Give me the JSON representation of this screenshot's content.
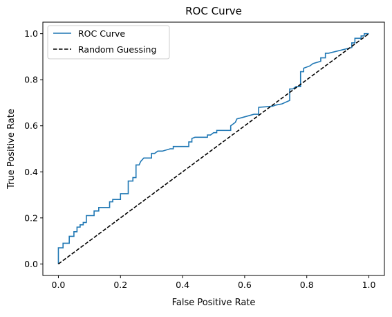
{
  "chart_data": {
    "type": "line",
    "title": "ROC Curve",
    "xlabel": "False Positive Rate",
    "ylabel": "True Positive Rate",
    "xlim": [
      -0.05,
      1.05
    ],
    "ylim": [
      -0.05,
      1.05
    ],
    "xticks": [
      0.0,
      0.2,
      0.4,
      0.6,
      0.8,
      1.0
    ],
    "yticks": [
      0.0,
      0.2,
      0.4,
      0.6,
      0.8,
      1.0
    ],
    "xtick_labels": [
      "0.0",
      "0.2",
      "0.4",
      "0.6",
      "0.8",
      "1.0"
    ],
    "ytick_labels": [
      "0.0",
      "0.2",
      "0.4",
      "0.6",
      "0.8",
      "1.0"
    ],
    "grid": false,
    "legend_position": "top-left",
    "series": [
      {
        "name": "ROC Curve",
        "color": "#1f77b4",
        "style": "solid",
        "points": [
          [
            0.0,
            0.0
          ],
          [
            0.0,
            0.07
          ],
          [
            0.015,
            0.07
          ],
          [
            0.015,
            0.09
          ],
          [
            0.035,
            0.09
          ],
          [
            0.035,
            0.12
          ],
          [
            0.05,
            0.12
          ],
          [
            0.05,
            0.14
          ],
          [
            0.06,
            0.14
          ],
          [
            0.06,
            0.16
          ],
          [
            0.07,
            0.16
          ],
          [
            0.07,
            0.17
          ],
          [
            0.08,
            0.17
          ],
          [
            0.08,
            0.18
          ],
          [
            0.09,
            0.18
          ],
          [
            0.09,
            0.21
          ],
          [
            0.115,
            0.21
          ],
          [
            0.115,
            0.23
          ],
          [
            0.13,
            0.23
          ],
          [
            0.13,
            0.245
          ],
          [
            0.165,
            0.245
          ],
          [
            0.165,
            0.27
          ],
          [
            0.175,
            0.27
          ],
          [
            0.175,
            0.28
          ],
          [
            0.2,
            0.28
          ],
          [
            0.2,
            0.305
          ],
          [
            0.225,
            0.305
          ],
          [
            0.225,
            0.36
          ],
          [
            0.24,
            0.36
          ],
          [
            0.24,
            0.375
          ],
          [
            0.25,
            0.375
          ],
          [
            0.25,
            0.43
          ],
          [
            0.26,
            0.43
          ],
          [
            0.265,
            0.445
          ],
          [
            0.275,
            0.46
          ],
          [
            0.3,
            0.46
          ],
          [
            0.3,
            0.48
          ],
          [
            0.31,
            0.48
          ],
          [
            0.32,
            0.49
          ],
          [
            0.335,
            0.49
          ],
          [
            0.36,
            0.5
          ],
          [
            0.37,
            0.5
          ],
          [
            0.37,
            0.51
          ],
          [
            0.42,
            0.51
          ],
          [
            0.42,
            0.53
          ],
          [
            0.43,
            0.53
          ],
          [
            0.43,
            0.545
          ],
          [
            0.44,
            0.55
          ],
          [
            0.48,
            0.55
          ],
          [
            0.48,
            0.56
          ],
          [
            0.49,
            0.56
          ],
          [
            0.5,
            0.57
          ],
          [
            0.51,
            0.57
          ],
          [
            0.51,
            0.58
          ],
          [
            0.555,
            0.58
          ],
          [
            0.555,
            0.6
          ],
          [
            0.57,
            0.615
          ],
          [
            0.575,
            0.63
          ],
          [
            0.59,
            0.635
          ],
          [
            0.63,
            0.65
          ],
          [
            0.645,
            0.65
          ],
          [
            0.645,
            0.68
          ],
          [
            0.69,
            0.685
          ],
          [
            0.7,
            0.69
          ],
          [
            0.72,
            0.695
          ],
          [
            0.745,
            0.71
          ],
          [
            0.745,
            0.76
          ],
          [
            0.755,
            0.76
          ],
          [
            0.765,
            0.77
          ],
          [
            0.78,
            0.77
          ],
          [
            0.78,
            0.835
          ],
          [
            0.79,
            0.835
          ],
          [
            0.79,
            0.85
          ],
          [
            0.81,
            0.86
          ],
          [
            0.82,
            0.87
          ],
          [
            0.845,
            0.88
          ],
          [
            0.845,
            0.895
          ],
          [
            0.86,
            0.895
          ],
          [
            0.86,
            0.915
          ],
          [
            0.87,
            0.915
          ],
          [
            0.945,
            0.94
          ],
          [
            0.945,
            0.96
          ],
          [
            0.955,
            0.96
          ],
          [
            0.955,
            0.98
          ],
          [
            0.975,
            0.98
          ],
          [
            0.975,
            0.99
          ],
          [
            0.985,
            0.99
          ],
          [
            0.985,
            1.0
          ],
          [
            1.0,
            1.0
          ]
        ]
      },
      {
        "name": "Random Guessing",
        "color": "#000000",
        "style": "dashed",
        "points": [
          [
            0.0,
            0.0
          ],
          [
            1.0,
            1.0
          ]
        ]
      }
    ]
  }
}
